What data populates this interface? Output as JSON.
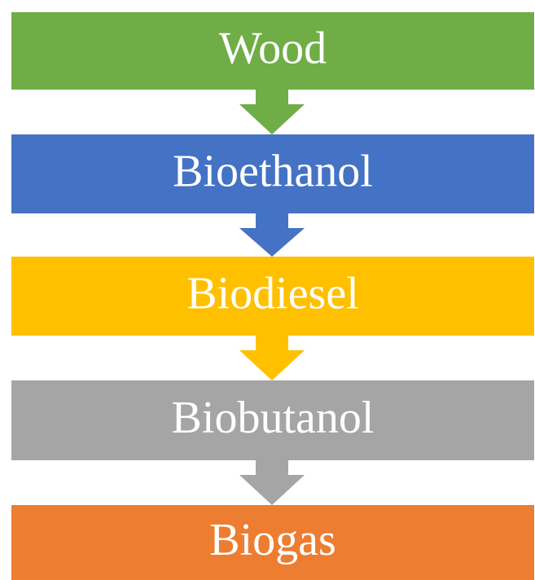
{
  "nodes": [
    {
      "label": "Wood",
      "color": "#70ad47"
    },
    {
      "label": "Bioethanol",
      "color": "#4472c4"
    },
    {
      "label": "Biodiesel",
      "color": "#ffc000"
    },
    {
      "label": "Biobutanol",
      "color": "#a5a5a5"
    },
    {
      "label": "Biogas",
      "color": "#ed7d31"
    }
  ]
}
